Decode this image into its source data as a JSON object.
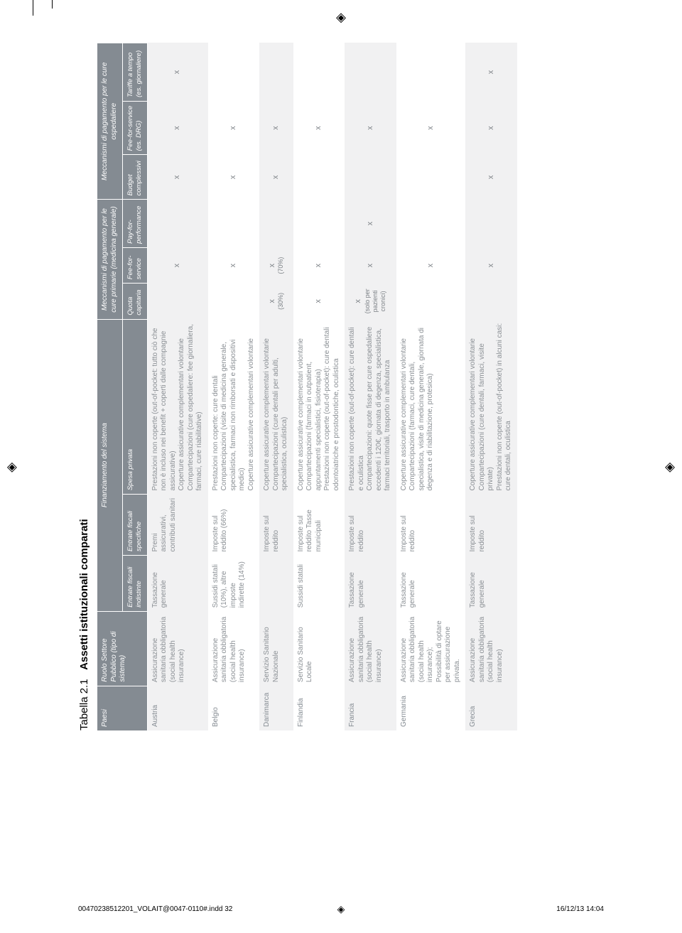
{
  "title_pre": "Tabella 2.1",
  "title_main": "Assetti istituzionali comparati",
  "marker_glyph": "◈",
  "tick_positions": [
    46,
    73
  ],
  "footer": {
    "left": "00470238512201_VOLAIT@0047-0110#.indd   32",
    "right": "16/12/13   14:04"
  },
  "header": {
    "top": [
      "Paesi",
      "Ruolo Settore Pubblico (tipo di sistema)",
      "Finanziamento del sistema",
      "Meccanismi di pagamento per le cure primarie (medicina generale)",
      "Meccanismi di pagamento per le cure ospedaliere"
    ],
    "sub": [
      "Entrate fiscali indistinte",
      "Entrate fiscali specifiche",
      "Spesa privata",
      "Quota capitaria",
      "Fee-for-service",
      "Pay-for-performance",
      "Budget complessivi",
      "Fee-for-service (es. DRG)",
      "Tariffe a tempo (es. giornaliere)"
    ]
  },
  "colors": {
    "header_bg": "#848b92",
    "header_fg": "#ffffff",
    "row_alt": "#f1f1f2",
    "text": "#8a8f94"
  },
  "rows": [
    {
      "country": "Austria",
      "role": "Assicurazione sanitaria obbligatoria (social health insurance)",
      "ind": "Tassazione generale",
      "spec": "Premi assicurativi, contributi sanitari",
      "priv": "Prestazioni non coperte (out-of-pocket: tutto ciò che non è incluso nei benefit + coperti dalle compagnie assicurative)\nCoperture assicurative complementari volontarie\nCompartecipazioni (cure ospedaliere: fee giornaliera, farmaci, cure riabilitative)",
      "cap": "",
      "ffs": "x",
      "pfp": "",
      "budget": "x",
      "drg": "x",
      "tariffe": "x"
    },
    {
      "country": "Belgio",
      "role": "Assicurazione sanitaria obbligatoria (social health insurance)",
      "ind": "Sussidi statali (10%), altre imposte indirette (14%)",
      "spec": "Imposte sul reddito (66%)",
      "priv": "Prestazioni non coperte: cure dentali\nCompartecipazioni (visite di medicina generale, specialistica, farmaci non rimborsati e dispositivi medici)\nCoperture assicurative complementari volontarie",
      "cap": "",
      "ffs": "x",
      "pfp": "",
      "budget": "x",
      "drg": "x",
      "tariffe": ""
    },
    {
      "country": "Danimarca",
      "role": "Servizio Sanitario Nazionale",
      "ind": "",
      "spec": "Imposte sul reddito",
      "priv": "Coperture assicurative complementari volontarie\nCompartecipazioni (cure dentali per adulti, specialistica, oculistica)",
      "cap": "x",
      "cap_sub": "(30%)",
      "ffs": "x",
      "ffs_sub": "(70%)",
      "pfp": "",
      "budget": "x",
      "drg": "x",
      "tariffe": ""
    },
    {
      "country": "Finlandia",
      "role": "Servizio Sanitario Locale",
      "ind": "Sussidi statali",
      "spec": "Imposte sul reddito Tasse municipali",
      "priv": "Coperture assicurative complementari volontarie\nCompartecipazioni (farmaci in outpatient, appuntamenti specialistici, fisioterapia)\nPrestazioni non coperte (out-of-pocket): cure dentali odontoiatriche e prostodontiche, oculistica",
      "cap": "x",
      "ffs": "x",
      "pfp": "",
      "budget": "",
      "drg": "x",
      "tariffe": ""
    },
    {
      "country": "Francia",
      "role": "Assicurazione sanitaria obbligatoria (social health insurance)",
      "ind": "Tassazione generale",
      "spec": "Imposte sul reddito",
      "priv": "Prestazioni non coperte (out-of-pocket): cure dentali e oculistica\nCompartecipazioni: quote fisse per cure ospedaliere eccedenti i 120€, giornata di degenza, specialistica, farmaci territoriali, trasporto in ambulanza",
      "cap": "x",
      "cap_sub": "(solo per pazienti cronici)",
      "ffs": "x",
      "pfp": "x",
      "budget": "",
      "drg": "x",
      "tariffe": ""
    },
    {
      "country": "Germania",
      "role": "Assicurazione sanitaria obbligatoria (social health insurance); Possibilità di optare per assicurazione privata.",
      "ind": "Tassazione generale",
      "spec": "Imposte sul reddito",
      "priv": "Coperture assicurative complementari volontarie\nCompartecipazioni (farmaci, cure dentali, specialistica, visite di medicina generale, giornata di degenza e di riabilitazione, protesica)",
      "cap": "",
      "ffs": "x",
      "pfp": "",
      "budget": "",
      "drg": "x",
      "tariffe": ""
    },
    {
      "country": "Grecia",
      "role": "Assicurazione sanitaria obbligatoria (social health insurance)",
      "ind": "Tassazione generale",
      "spec": "Imposte sul reddito",
      "priv": "Coperture assicurative complementari volontarie\nCompartecipazioni (cure dentali, farmaci, visite private)\nPrestazioni non coperte (out-of-pocket) in alcuni casi: cure dentali, oculistica",
      "cap": "",
      "ffs": "x",
      "pfp": "",
      "budget": "x",
      "drg": "x",
      "tariffe": "x"
    }
  ]
}
